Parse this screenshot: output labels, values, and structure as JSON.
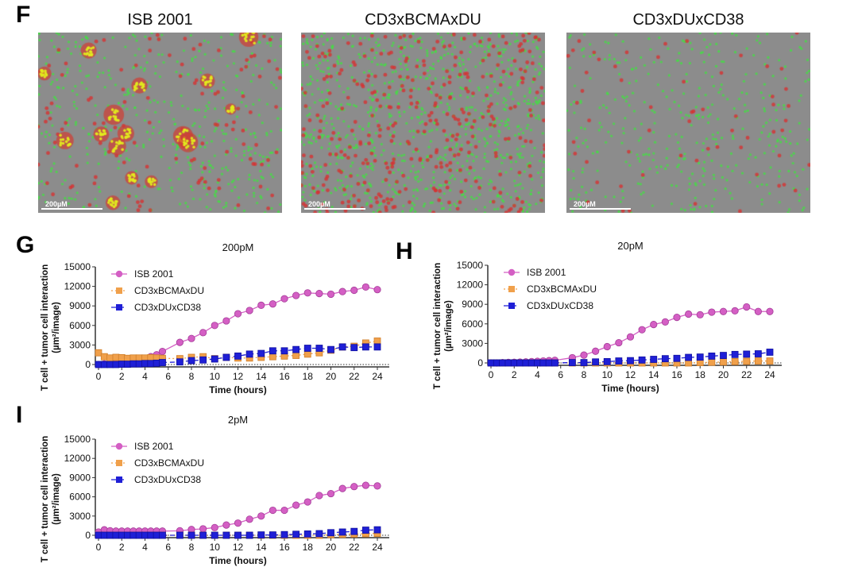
{
  "panels": {
    "F": "F",
    "G": "G",
    "H": "H",
    "I": "I"
  },
  "micrographs": [
    {
      "title": "ISB 2001",
      "scale_bar": "200µM",
      "pattern": "clusters"
    },
    {
      "title": "CD3xBCMAxDU",
      "scale_bar": "200µM",
      "pattern": "dense"
    },
    {
      "title": "CD3xDUxCD38",
      "scale_bar": "200µM",
      "pattern": "sparse"
    }
  ],
  "colors": {
    "ISB 2001": "#d45fc4",
    "CD3xBCMAxDU": "#f0a04b",
    "CD3xDUxCD38": "#1f1fd6"
  },
  "chart_data": [
    {
      "panel": "G",
      "type": "line",
      "title": "200pM",
      "xlabel": "Time (hours)",
      "ylabel": "T cell + tumor cell interaction",
      "ylabel2": "(µm²/image)",
      "xlim": [
        0,
        24
      ],
      "ylim": [
        0,
        15000
      ],
      "xticks": [
        0,
        2,
        4,
        6,
        8,
        10,
        12,
        14,
        16,
        18,
        20,
        22,
        24
      ],
      "yticks": [
        0,
        3000,
        6000,
        9000,
        12000,
        15000
      ],
      "legend": "top-left",
      "x": [
        0,
        0.5,
        1,
        1.5,
        2,
        2.5,
        3,
        3.5,
        4,
        4.5,
        5,
        5.5,
        7,
        8,
        9,
        10,
        11,
        12,
        13,
        14,
        15,
        16,
        17,
        18,
        19,
        20,
        21,
        22,
        23,
        24
      ],
      "series": [
        {
          "name": "ISB 2001",
          "values": [
            0,
            100,
            200,
            250,
            300,
            350,
            500,
            700,
            950,
            1200,
            1500,
            2000,
            3400,
            4000,
            4900,
            6000,
            6700,
            7800,
            8300,
            9100,
            9300,
            10100,
            10600,
            11000,
            10900,
            10800,
            11200,
            11400,
            11900,
            11500
          ]
        },
        {
          "name": "CD3xBCMAxDU",
          "values": [
            1800,
            1200,
            1000,
            1100,
            1050,
            950,
            1000,
            1000,
            1000,
            1050,
            1000,
            950,
            900,
            1100,
            1200,
            900,
            1100,
            1000,
            1000,
            1100,
            1200,
            1300,
            1400,
            1600,
            1800,
            2200,
            2700,
            2800,
            3300,
            3600
          ]
        },
        {
          "name": "CD3xDUxCD38",
          "values": [
            0,
            0,
            0,
            0,
            50,
            50,
            100,
            100,
            150,
            150,
            200,
            300,
            400,
            600,
            700,
            850,
            1100,
            1300,
            1600,
            1700,
            2100,
            2100,
            2300,
            2500,
            2500,
            2300,
            2700,
            2600,
            2700,
            2700
          ]
        }
      ]
    },
    {
      "panel": "H",
      "type": "line",
      "title": "20pM",
      "xlabel": "Time (hours)",
      "ylabel": "T cell + tumor cell interaction",
      "ylabel2": "(µm²/image)",
      "xlim": [
        0,
        24
      ],
      "ylim": [
        0,
        15000
      ],
      "xticks": [
        0,
        2,
        4,
        6,
        8,
        10,
        12,
        14,
        16,
        18,
        20,
        22,
        24
      ],
      "yticks": [
        0,
        3000,
        6000,
        9000,
        12000,
        15000
      ],
      "legend": "top-left",
      "x": [
        0,
        0.5,
        1,
        1.5,
        2,
        2.5,
        3,
        3.5,
        4,
        4.5,
        5,
        5.5,
        7,
        8,
        9,
        10,
        11,
        12,
        13,
        14,
        15,
        16,
        17,
        18,
        19,
        20,
        21,
        22,
        23,
        24
      ],
      "series": [
        {
          "name": "ISB 2001",
          "values": [
            0,
            0,
            50,
            80,
            100,
            120,
            150,
            200,
            250,
            300,
            350,
            400,
            800,
            1200,
            1800,
            2500,
            3100,
            4000,
            5100,
            5900,
            6300,
            7000,
            7500,
            7400,
            7800,
            7900,
            8000,
            8600,
            7900,
            7900
          ]
        },
        {
          "name": "CD3xBCMAxDU",
          "values": [
            0,
            0,
            0,
            0,
            0,
            0,
            0,
            0,
            0,
            0,
            0,
            0,
            0,
            0,
            0,
            0,
            0,
            0,
            0,
            0,
            0,
            0,
            0,
            50,
            100,
            150,
            200,
            250,
            300,
            300
          ]
        },
        {
          "name": "CD3xDUxCD38",
          "values": [
            0,
            0,
            0,
            0,
            0,
            0,
            0,
            0,
            0,
            0,
            0,
            0,
            50,
            50,
            150,
            200,
            300,
            350,
            450,
            550,
            650,
            700,
            850,
            900,
            1050,
            1150,
            1300,
            1350,
            1400,
            1650
          ]
        }
      ]
    },
    {
      "panel": "I",
      "type": "line",
      "title": "2pM",
      "xlabel": "Time (hours)",
      "ylabel": "T cell + tumor cell interaction",
      "ylabel2": "(µm²/image)",
      "xlim": [
        0,
        24
      ],
      "ylim": [
        0,
        15000
      ],
      "xticks": [
        0,
        2,
        4,
        6,
        8,
        10,
        12,
        14,
        16,
        18,
        20,
        22,
        24
      ],
      "yticks": [
        0,
        3000,
        6000,
        9000,
        12000,
        15000
      ],
      "legend": "top-left",
      "x": [
        0,
        0.5,
        1,
        1.5,
        2,
        2.5,
        3,
        3.5,
        4,
        4.5,
        5,
        5.5,
        7,
        8,
        9,
        10,
        11,
        12,
        13,
        14,
        15,
        16,
        17,
        18,
        19,
        20,
        21,
        22,
        23,
        24
      ],
      "series": [
        {
          "name": "ISB 2001",
          "values": [
            500,
            850,
            700,
            650,
            650,
            650,
            650,
            650,
            650,
            650,
            650,
            650,
            700,
            900,
            1000,
            1200,
            1600,
            1900,
            2500,
            3000,
            3900,
            3900,
            4700,
            5200,
            6200,
            6500,
            7300,
            7600,
            7800,
            7700
          ]
        },
        {
          "name": "CD3xBCMAxDU",
          "values": [
            0,
            0,
            0,
            0,
            0,
            0,
            0,
            0,
            0,
            0,
            0,
            0,
            0,
            0,
            0,
            0,
            0,
            0,
            0,
            0,
            0,
            0,
            0,
            0,
            0,
            100,
            150,
            200,
            250,
            300
          ]
        },
        {
          "name": "CD3xDUxCD38",
          "values": [
            0,
            0,
            0,
            0,
            0,
            0,
            0,
            0,
            0,
            0,
            0,
            0,
            0,
            0,
            0,
            0,
            0,
            0,
            0,
            50,
            50,
            100,
            150,
            200,
            250,
            400,
            500,
            600,
            800,
            850
          ]
        }
      ]
    }
  ]
}
